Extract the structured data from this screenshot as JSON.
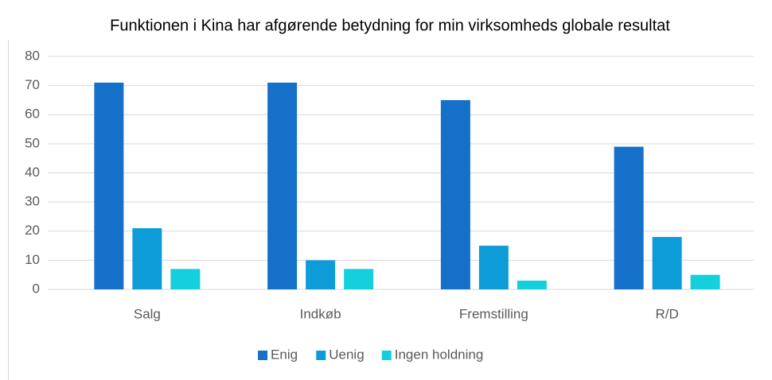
{
  "chart_data": {
    "type": "bar",
    "subtitle": "Funktionen i Kina har afgørende betydning for min virksomheds globale resultat",
    "categories": [
      "Salg",
      "Indkøb",
      "Fremstilling",
      "R/D"
    ],
    "series": [
      {
        "name": "Enig",
        "color": "#1470c8",
        "values": [
          71,
          71,
          65,
          49
        ]
      },
      {
        "name": "Uenig",
        "color": "#0e9cd8",
        "values": [
          21,
          10,
          15,
          18
        ]
      },
      {
        "name": "Ingen holdning",
        "color": "#14d0dc",
        "values": [
          7,
          7,
          3,
          5
        ]
      }
    ],
    "ylim": [
      0,
      80
    ],
    "yticks": [
      0,
      10,
      20,
      30,
      40,
      50,
      60,
      70,
      80
    ],
    "grid": true,
    "legend": "bottom"
  }
}
